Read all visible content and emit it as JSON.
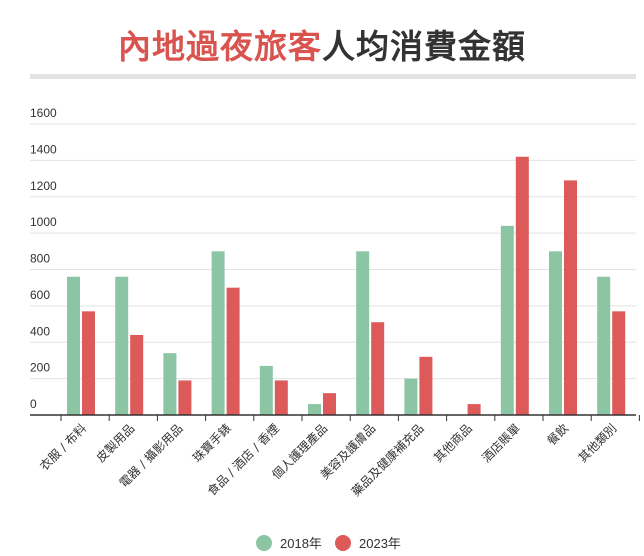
{
  "title": {
    "highlight": "內地過夜旅客",
    "rest": "人均消費金額"
  },
  "colors": {
    "s2018": "#8cc5a3",
    "s2023": "#dc5a5a",
    "title_highlight": "#d9534f"
  },
  "chart_data": {
    "type": "bar",
    "title": "內地過夜旅客人均消費金額",
    "categories": [
      "衣服 / 布料",
      "皮製用品",
      "電器 / 攝影用品",
      "珠寶手錶",
      "食品 / 酒店 / 香煙",
      "個人護理產品",
      "美容及護膚品",
      "藥品及健康補充品",
      "其他商品",
      "酒店賬單",
      "餐飲",
      "其他類別"
    ],
    "series": [
      {
        "name": "2018年",
        "values": [
          760,
          760,
          340,
          900,
          270,
          60,
          900,
          200,
          0,
          1040,
          900,
          760
        ]
      },
      {
        "name": "2023年",
        "values": [
          570,
          440,
          190,
          700,
          190,
          120,
          510,
          320,
          60,
          1420,
          1290,
          570
        ]
      }
    ],
    "yticks": [
      0,
      200,
      400,
      600,
      800,
      1000,
      1200,
      1400,
      1600
    ],
    "ylim": [
      0,
      1600
    ],
    "grid": true,
    "legend_position": "bottom"
  }
}
